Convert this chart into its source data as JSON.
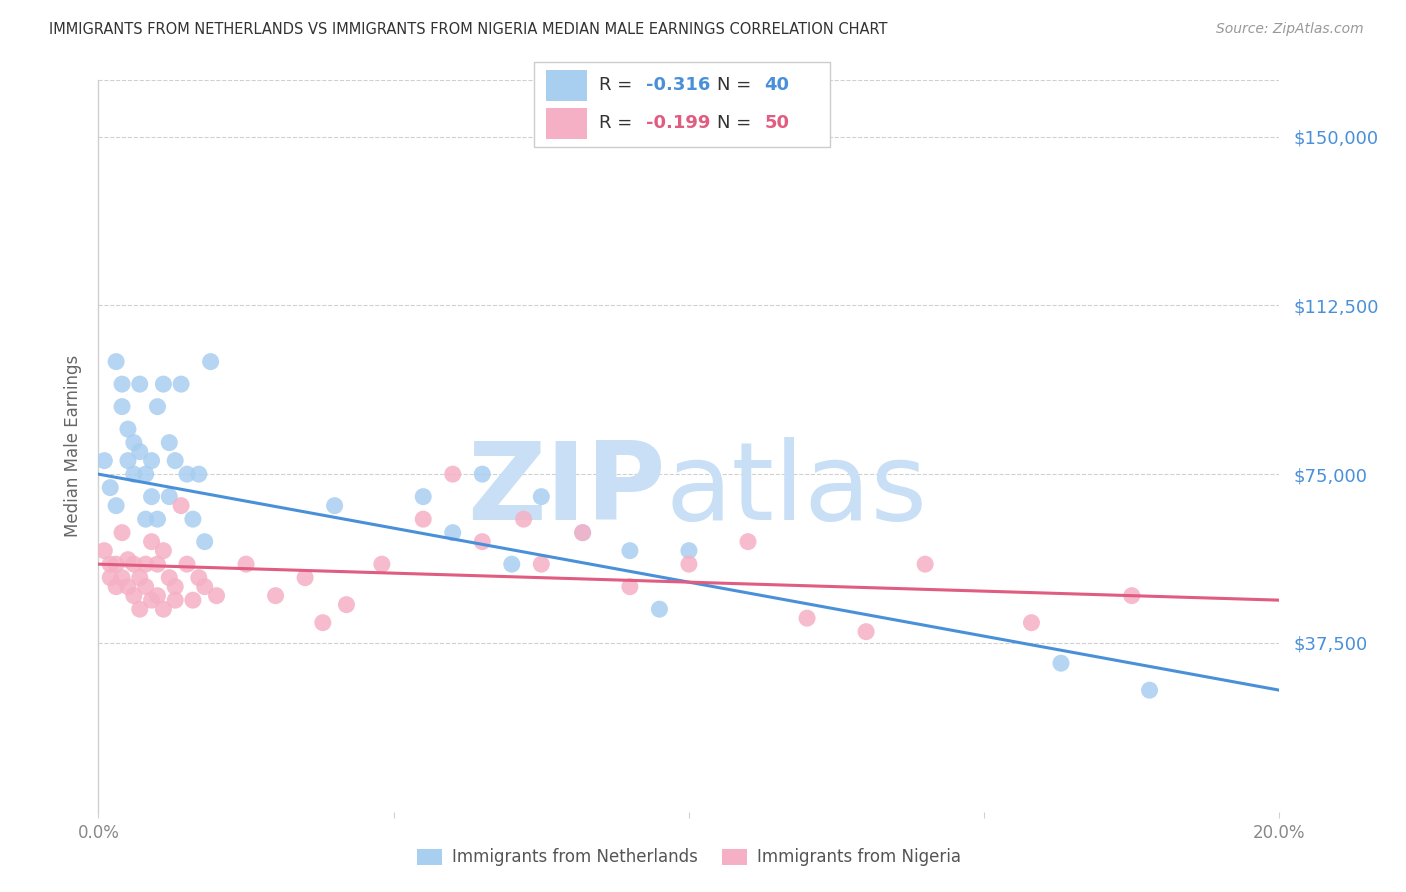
{
  "title": "IMMIGRANTS FROM NETHERLANDS VS IMMIGRANTS FROM NIGERIA MEDIAN MALE EARNINGS CORRELATION CHART",
  "source": "Source: ZipAtlas.com",
  "ylabel": "Median Male Earnings",
  "ytick_labels": [
    "$37,500",
    "$75,000",
    "$112,500",
    "$150,000"
  ],
  "ytick_values": [
    37500,
    75000,
    112500,
    150000
  ],
  "ymin": 0,
  "ymax": 162500,
  "xmin": 0.0,
  "xmax": 0.2,
  "netherlands_color": "#a8cef0",
  "nigeria_color": "#f5b0c5",
  "netherlands_line_color": "#4a90d9",
  "nigeria_line_color": "#e05c80",
  "netherlands_x": [
    0.001,
    0.002,
    0.003,
    0.003,
    0.004,
    0.004,
    0.005,
    0.005,
    0.006,
    0.006,
    0.007,
    0.007,
    0.008,
    0.008,
    0.009,
    0.009,
    0.01,
    0.01,
    0.011,
    0.012,
    0.012,
    0.013,
    0.014,
    0.015,
    0.016,
    0.017,
    0.018,
    0.019,
    0.04,
    0.055,
    0.06,
    0.065,
    0.07,
    0.075,
    0.082,
    0.09,
    0.095,
    0.1,
    0.163,
    0.178
  ],
  "netherlands_y": [
    78000,
    72000,
    100000,
    68000,
    95000,
    90000,
    85000,
    78000,
    82000,
    75000,
    95000,
    80000,
    75000,
    65000,
    78000,
    70000,
    90000,
    65000,
    95000,
    82000,
    70000,
    78000,
    95000,
    75000,
    65000,
    75000,
    60000,
    100000,
    68000,
    70000,
    62000,
    75000,
    55000,
    70000,
    62000,
    58000,
    45000,
    58000,
    33000,
    27000
  ],
  "nigeria_x": [
    0.001,
    0.002,
    0.002,
    0.003,
    0.003,
    0.004,
    0.004,
    0.005,
    0.005,
    0.006,
    0.006,
    0.007,
    0.007,
    0.008,
    0.008,
    0.009,
    0.009,
    0.01,
    0.01,
    0.011,
    0.011,
    0.012,
    0.013,
    0.013,
    0.014,
    0.015,
    0.016,
    0.017,
    0.018,
    0.02,
    0.025,
    0.03,
    0.035,
    0.038,
    0.042,
    0.048,
    0.055,
    0.06,
    0.065,
    0.072,
    0.075,
    0.082,
    0.09,
    0.1,
    0.11,
    0.12,
    0.13,
    0.14,
    0.158,
    0.175
  ],
  "nigeria_y": [
    58000,
    55000,
    52000,
    55000,
    50000,
    62000,
    52000,
    56000,
    50000,
    55000,
    48000,
    52000,
    45000,
    55000,
    50000,
    60000,
    47000,
    55000,
    48000,
    58000,
    45000,
    52000,
    50000,
    47000,
    68000,
    55000,
    47000,
    52000,
    50000,
    48000,
    55000,
    48000,
    52000,
    42000,
    46000,
    55000,
    65000,
    75000,
    60000,
    65000,
    55000,
    62000,
    50000,
    55000,
    60000,
    43000,
    40000,
    55000,
    42000,
    48000
  ],
  "background_color": "#ffffff",
  "grid_color": "#d0d0d0",
  "title_color": "#333333",
  "ytick_color": "#4a90d9",
  "xtick_color": "#888888",
  "source_color": "#999999",
  "watermark_zip_color": "#c8dff5",
  "watermark_atlas_color": "#c8dff5",
  "r_nl": "-0.316",
  "n_nl": "40",
  "r_ng": "-0.199",
  "n_ng": "50",
  "legend_label_nl": "Immigrants from Netherlands",
  "legend_label_ng": "Immigrants from Nigeria"
}
